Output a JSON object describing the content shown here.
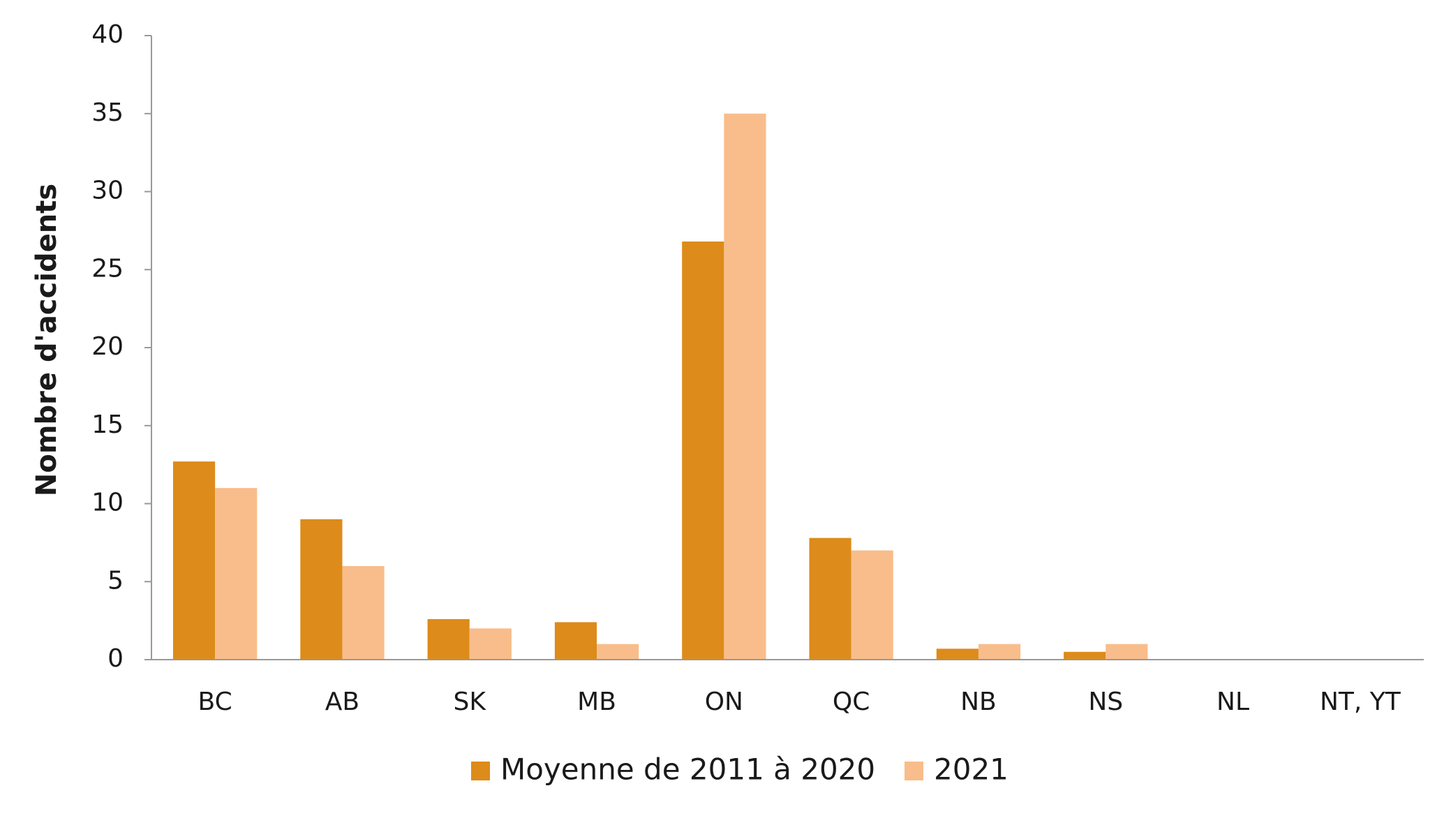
{
  "chart_data": {
    "type": "bar",
    "y_axis_label": "Nombre d'accidents",
    "categories": [
      "BC",
      "AB",
      "SK",
      "MB",
      "ON",
      "QC",
      "NB",
      "NS",
      "NL",
      "NT, YT"
    ],
    "series": [
      {
        "name": "Moyenne de 2011 à 2020",
        "color": "#dd8b1a",
        "values": [
          12.7,
          9,
          2.6,
          2.4,
          26.8,
          7.8,
          0.7,
          0.5,
          0,
          0
        ]
      },
      {
        "name": "2021",
        "color": "#f8bd8a",
        "values": [
          11,
          6,
          2,
          1,
          35,
          7,
          1,
          1,
          0,
          0
        ]
      }
    ],
    "ylim": [
      0,
      40
    ],
    "yticks": [
      0,
      5,
      10,
      15,
      20,
      25,
      30,
      35,
      40
    ],
    "grid": false,
    "legend": "bottom"
  }
}
